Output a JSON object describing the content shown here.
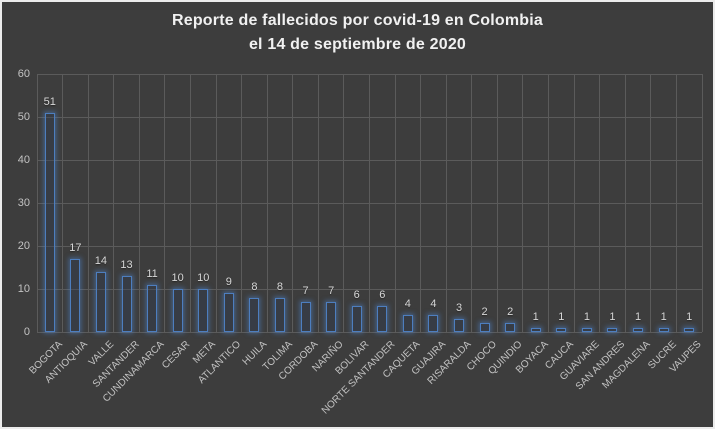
{
  "title": {
    "line1": "Reporte de fallecidos por covid-19 en Colombia",
    "line2": "el 14 de septiembre de 2020"
  },
  "colors": {
    "background": "#3d3d3d",
    "gridline": "#5b5b5b",
    "bar_outline": "#4d7ebf",
    "bar_glow": "rgba(77,126,191,0.55)",
    "title_text": "#f1f1f1",
    "axis_text": "#c3c3c3",
    "value_label_text": "#d8d8d8",
    "outer_border": "#ececec"
  },
  "chart_data": {
    "type": "bar",
    "title": "Reporte de fallecidos por covid-19 en Colombia el 14 de septiembre de 2020",
    "categories": [
      "BOGOTA",
      "ANTIOQUIA",
      "VALLE",
      "SANTANDER",
      "CUNDINAMARCA",
      "CESAR",
      "META",
      "ATLANTICO",
      "HUILA",
      "TOLIMA",
      "CORDOBA",
      "NARIÑO",
      "BOLIVAR",
      "NORTE SANTANDER",
      "CAQUETA",
      "GUAJIRA",
      "RISARALDA",
      "CHOCO",
      "QUINDIO",
      "BOYACA",
      "CAUCA",
      "GUAVIARE",
      "SAN ANDRES",
      "MAGDALENA",
      "SUCRE",
      "VAUPES"
    ],
    "values": [
      51,
      17,
      14,
      13,
      11,
      10,
      10,
      9,
      8,
      8,
      7,
      7,
      6,
      6,
      4,
      4,
      3,
      2,
      2,
      1,
      1,
      1,
      1,
      1,
      1,
      1
    ],
    "data_labels": true,
    "xlabel": "",
    "ylabel": "",
    "ylim": [
      0,
      60
    ],
    "yticks": [
      0,
      10,
      20,
      30,
      40,
      50,
      60
    ],
    "grid": true,
    "legend": false
  }
}
